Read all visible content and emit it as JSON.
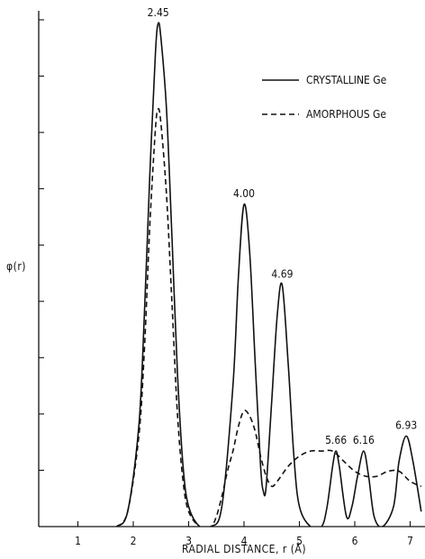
{
  "chart_data": {
    "type": "line",
    "title": "",
    "xlabel": "RADIAL DISTANCE, r (Å)",
    "ylabel": "φ(r)",
    "xlim": [
      0,
      7.3
    ],
    "ylim": [
      0,
      1.0
    ],
    "xticks": [
      1,
      2,
      3,
      4,
      5,
      6,
      7
    ],
    "y_minor_ticks": 9,
    "grid": false,
    "legend_position": "top-right",
    "series": [
      {
        "name": "CRYSTALLINE Ge",
        "style": "solid",
        "x": [
          1.7,
          1.9,
          2.1,
          2.2,
          2.3,
          2.4,
          2.45,
          2.5,
          2.6,
          2.7,
          2.8,
          2.9,
          3.0,
          3.2,
          3.4,
          3.6,
          3.8,
          3.9,
          4.0,
          4.1,
          4.2,
          4.3,
          4.35,
          4.4,
          4.5,
          4.6,
          4.69,
          4.8,
          4.9,
          5.0,
          5.2,
          5.4,
          5.5,
          5.6,
          5.66,
          5.72,
          5.85,
          5.95,
          6.05,
          6.16,
          6.25,
          6.35,
          6.5,
          6.7,
          6.8,
          6.93,
          7.05,
          7.2
        ],
        "y": [
          0.0,
          0.03,
          0.2,
          0.42,
          0.7,
          0.94,
          1.0,
          0.97,
          0.83,
          0.57,
          0.3,
          0.12,
          0.04,
          0.0,
          0.0,
          0.04,
          0.28,
          0.5,
          0.64,
          0.55,
          0.33,
          0.12,
          0.07,
          0.08,
          0.25,
          0.42,
          0.48,
          0.32,
          0.14,
          0.04,
          0.0,
          0.0,
          0.04,
          0.12,
          0.15,
          0.12,
          0.02,
          0.04,
          0.1,
          0.15,
          0.1,
          0.02,
          0.0,
          0.04,
          0.13,
          0.18,
          0.13,
          0.03
        ]
      },
      {
        "name": "AMORPHOUS Ge",
        "style": "dashed",
        "x": [
          1.7,
          1.9,
          2.1,
          2.2,
          2.3,
          2.4,
          2.45,
          2.5,
          2.6,
          2.7,
          2.8,
          2.9,
          3.0,
          3.2,
          3.4,
          3.5,
          3.6,
          3.7,
          3.8,
          3.9,
          4.0,
          4.1,
          4.2,
          4.3,
          4.4,
          4.5,
          4.6,
          4.8,
          5.0,
          5.2,
          5.4,
          5.6,
          5.8,
          6.0,
          6.2,
          6.4,
          6.6,
          6.8,
          7.0,
          7.2
        ],
        "y": [
          0.0,
          0.03,
          0.18,
          0.35,
          0.6,
          0.79,
          0.83,
          0.8,
          0.66,
          0.44,
          0.22,
          0.09,
          0.03,
          0.0,
          0.0,
          0.02,
          0.06,
          0.11,
          0.15,
          0.2,
          0.23,
          0.22,
          0.19,
          0.14,
          0.1,
          0.08,
          0.09,
          0.12,
          0.14,
          0.15,
          0.15,
          0.15,
          0.13,
          0.11,
          0.1,
          0.1,
          0.11,
          0.11,
          0.09,
          0.08
        ]
      }
    ],
    "annotations": [
      {
        "text": "2.45",
        "x": 2.45,
        "y": 1.0
      },
      {
        "text": "4.00",
        "x": 4.0,
        "y": 0.64
      },
      {
        "text": "4.69",
        "x": 4.69,
        "y": 0.48
      },
      {
        "text": "5.66",
        "x": 5.66,
        "y": 0.15
      },
      {
        "text": "6.16",
        "x": 6.16,
        "y": 0.15
      },
      {
        "text": "6.93",
        "x": 6.93,
        "y": 0.18
      }
    ]
  }
}
